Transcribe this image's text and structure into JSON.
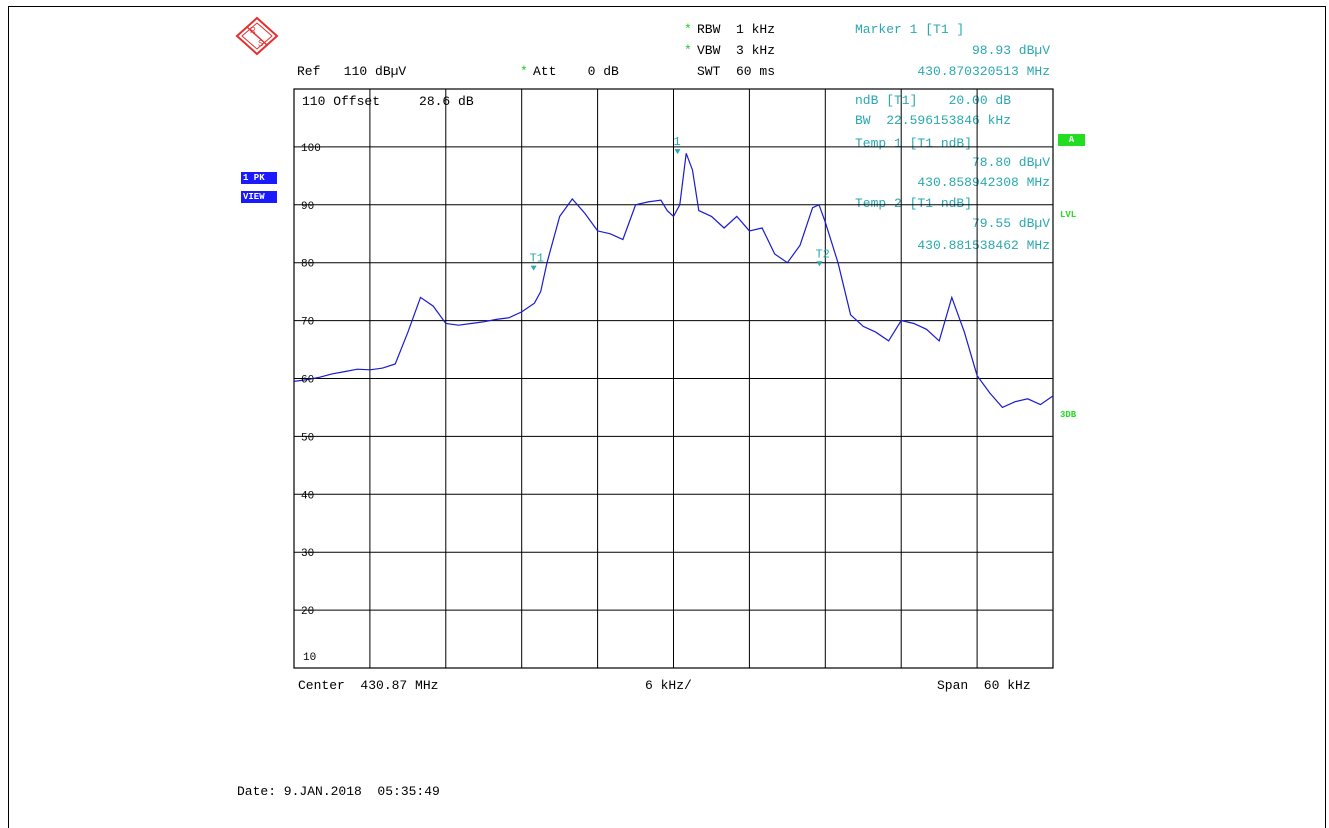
{
  "header": {
    "rbw": "RBW  1 kHz",
    "vbw": "VBW  3 kHz",
    "swt": "SWT  60 ms",
    "ref": "Ref   110 dBµV",
    "att": "Att    0 dB",
    "star": "*"
  },
  "marker_info": {
    "marker_title": "Marker 1 [T1 ]",
    "marker_level": "98.93 dBµV",
    "marker_freq": "430.870320513 MHz",
    "ndb_line": "ndB [T1]    20.00 dB",
    "bw_line": "BW  22.596153846 kHz",
    "temp1_title": "Temp 1 [T1 ndB]",
    "temp1_level": "78.80 dBµV",
    "temp1_freq": "430.858942308 MHz",
    "temp2_title": "Temp 2 [T1 ndB]",
    "temp2_level": "79.55 dBµV",
    "temp2_freq": "430.881538462 MHz"
  },
  "plot_labels": {
    "top_left": "110 Offset     28.6 dB",
    "marker1_label": "1",
    "t1_label": "T1",
    "t2_label": "T2"
  },
  "side_badges": {
    "trace_mode": "1 PK",
    "view": "VIEW",
    "a": "A",
    "lvl": "LVL",
    "db3": "3DB"
  },
  "footer": {
    "center": "Center  430.87 MHz",
    "div": "6 kHz/",
    "span": "Span  60 kHz",
    "date": "Date: 9.JAN.2018  05:35:49"
  },
  "colors": {
    "trace": "#1a1ad0",
    "marker": "#2aa8b0",
    "grid": "#000000"
  },
  "chart_data": {
    "type": "line",
    "title": "",
    "xlabel": "",
    "ylabel": "",
    "x_unit": "MHz",
    "xlim": [
      430.84,
      430.9
    ],
    "ylim": [
      10,
      110
    ],
    "y_ticks": [
      100,
      90,
      80,
      70,
      60,
      50,
      40,
      30,
      20,
      10
    ],
    "grid": true,
    "series": [
      {
        "x": [
          430.84,
          430.841,
          430.842,
          430.843,
          430.844,
          430.845,
          430.846,
          430.847,
          430.848,
          430.849,
          430.85,
          430.851,
          430.852,
          430.853,
          430.854,
          430.855,
          430.856,
          430.857,
          430.858,
          430.859,
          430.8595,
          430.86,
          430.861,
          430.862,
          430.863,
          430.864,
          430.865,
          430.866,
          430.867,
          430.868,
          430.869,
          430.8695,
          430.87,
          430.8705,
          430.871,
          430.8715,
          430.872,
          430.873,
          430.874,
          430.875,
          430.876,
          430.877,
          430.878,
          430.879,
          430.88,
          430.881,
          430.8815,
          430.882,
          430.883,
          430.884,
          430.885,
          430.886,
          430.887,
          430.888,
          430.889,
          430.89,
          430.891,
          430.892,
          430.893,
          430.894,
          430.895,
          430.896,
          430.897,
          430.898,
          430.899,
          430.9
        ],
        "values": [
          59.5,
          59.8,
          60.2,
          60.8,
          61.2,
          61.6,
          61.5,
          61.8,
          62.5,
          68.0,
          74.0,
          72.5,
          69.5,
          69.2,
          69.5,
          69.8,
          70.2,
          70.5,
          71.5,
          73.0,
          75.0,
          80.0,
          88.0,
          91.0,
          88.5,
          85.5,
          85.0,
          84.0,
          90.0,
          90.5,
          90.8,
          89.0,
          88.0,
          90.0,
          98.9,
          96.0,
          89.0,
          88.0,
          86.0,
          88.0,
          85.5,
          86.0,
          81.5,
          80.0,
          83.0,
          89.5,
          90.0,
          87.0,
          80.0,
          71.0,
          69.0,
          68.0,
          66.5,
          70.0,
          69.5,
          68.5,
          66.5,
          74.0,
          68.0,
          60.5,
          57.5,
          55.0,
          56.0,
          56.5,
          55.5,
          57.0
        ]
      }
    ],
    "markers": [
      {
        "name": "1",
        "x": 430.870320513,
        "y": 98.93
      },
      {
        "name": "T1",
        "x": 430.858942308,
        "y": 78.8
      },
      {
        "name": "T2",
        "x": 430.881538462,
        "y": 79.55
      }
    ]
  }
}
